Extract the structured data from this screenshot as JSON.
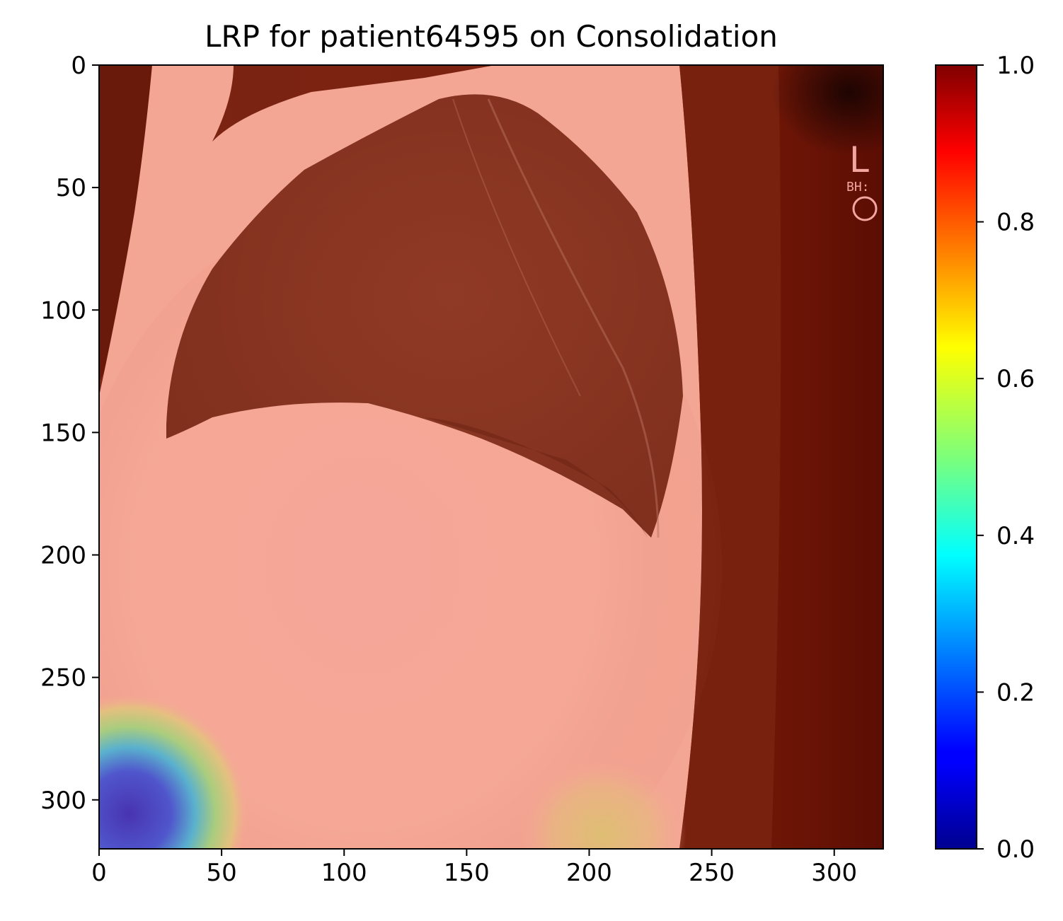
{
  "figure": {
    "title": "LRP for patient64595 on Consolidation",
    "image_description": "lateral chest x-ray overlaid with LRP relevance heatmap (jet colormap)",
    "marker_text": "L",
    "marker_subtext": "BH:"
  },
  "x_axis": {
    "ticks": [
      "0",
      "50",
      "100",
      "150",
      "200",
      "250",
      "300"
    ],
    "tick_values": [
      0,
      50,
      100,
      150,
      200,
      250,
      300
    ],
    "range": [
      0,
      320
    ]
  },
  "y_axis": {
    "ticks": [
      "0",
      "50",
      "100",
      "150",
      "200",
      "250",
      "300"
    ],
    "tick_values": [
      0,
      50,
      100,
      150,
      200,
      250,
      300
    ],
    "range": [
      0,
      320
    ],
    "inverted": true
  },
  "colorbar": {
    "colormap": "jet",
    "ticks": [
      "0.0",
      "0.2",
      "0.4",
      "0.6",
      "0.8",
      "1.0"
    ],
    "tick_values": [
      0.0,
      0.2,
      0.4,
      0.6,
      0.8,
      1.0
    ],
    "range": [
      0,
      1
    ]
  },
  "colors": {
    "overlay_dark": "#6e1406",
    "overlay_light": "#f8a894",
    "low_relevance": "#2a2acc"
  }
}
